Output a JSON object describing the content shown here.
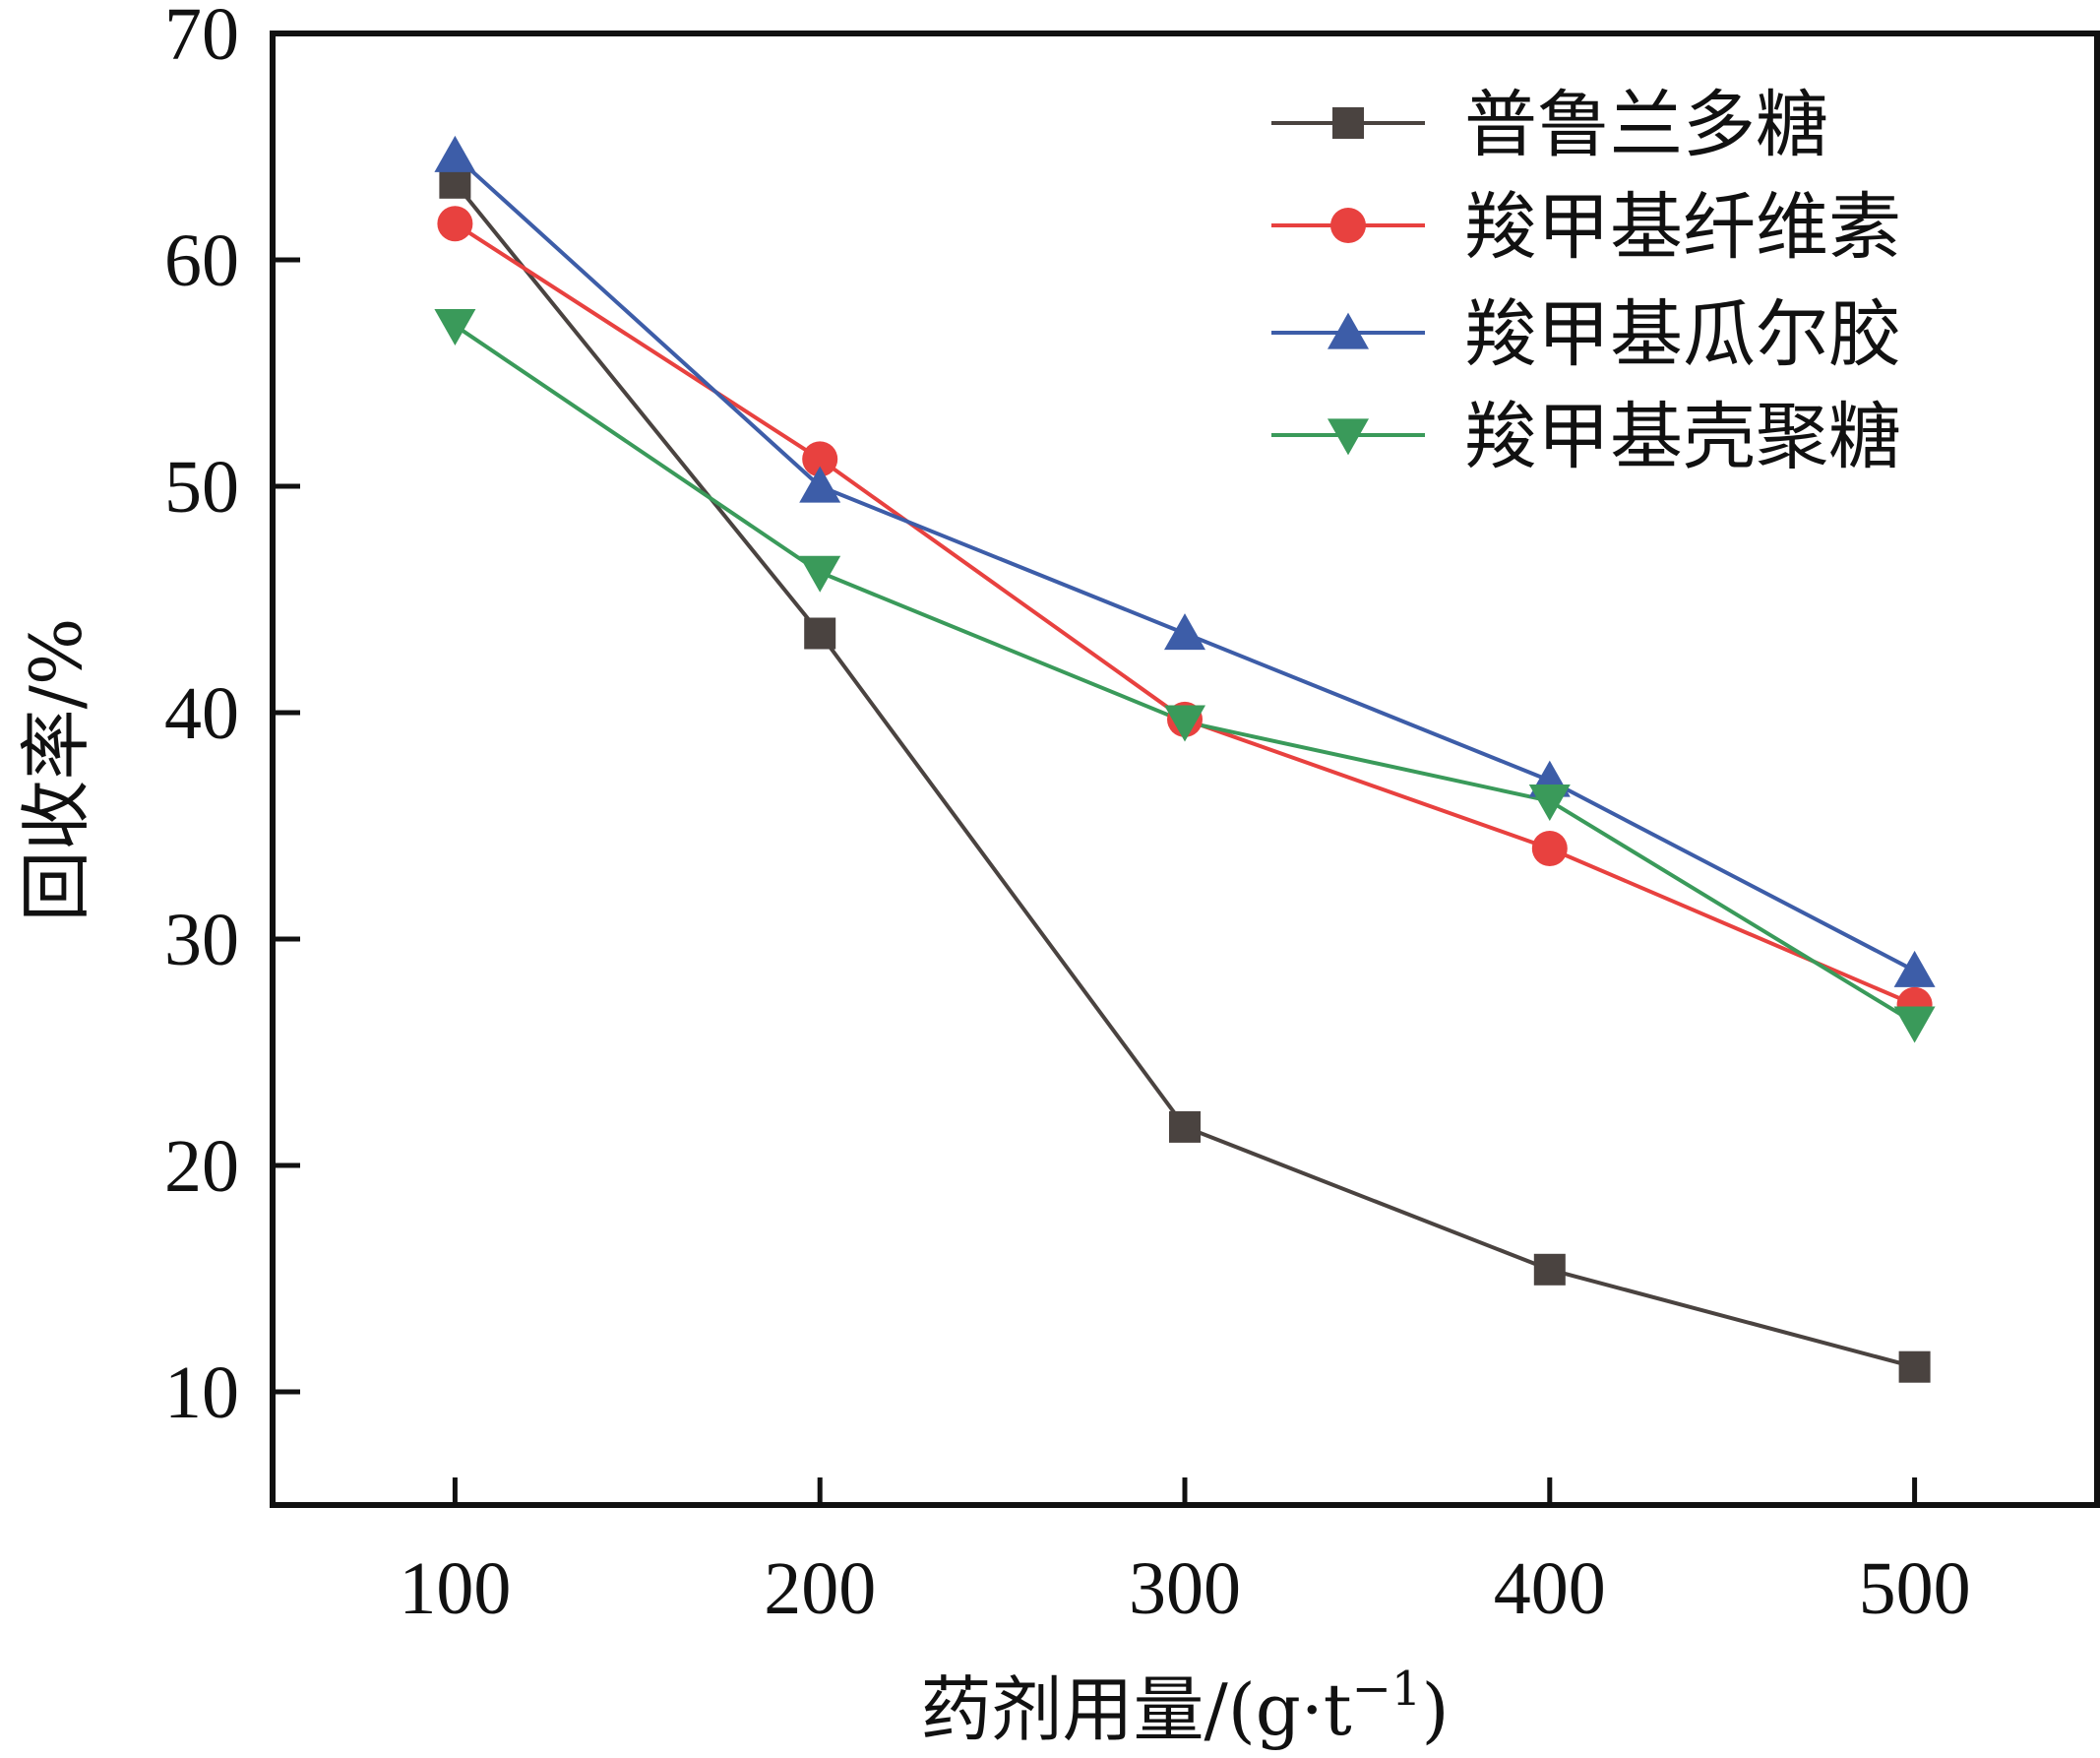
{
  "chart_data": {
    "type": "line",
    "title": "",
    "xlabel": "药剂用量/(g·t⁻¹)",
    "xlabel_parts": {
      "main": "药剂用量/(g·t",
      "sup": "−1",
      "tail": ")"
    },
    "ylabel": "回收率/%",
    "x": [
      100,
      200,
      300,
      400,
      500
    ],
    "xlim": [
      50,
      550
    ],
    "ylim": [
      5,
      70
    ],
    "xticks": [
      100,
      200,
      300,
      400,
      500
    ],
    "yticks": [
      10,
      20,
      30,
      40,
      50,
      60,
      70
    ],
    "grid": false,
    "legend_position": "top-right",
    "series": [
      {
        "name": "普鲁兰多糖",
        "marker": "square",
        "color": "#4a4340",
        "values": [
          63.4,
          43.5,
          21.7,
          15.4,
          11.1
        ]
      },
      {
        "name": "羧甲基纤维素",
        "marker": "circle",
        "color": "#e8413f",
        "values": [
          61.6,
          51.2,
          39.7,
          34.0,
          27.1
        ]
      },
      {
        "name": "羧甲基瓜尔胶",
        "marker": "triangle-up",
        "color": "#3d5da8",
        "values": [
          64.6,
          50.0,
          43.5,
          37.0,
          28.6
        ]
      },
      {
        "name": "羧甲基壳聚糖",
        "marker": "triangle-down",
        "color": "#3a9a5a",
        "values": [
          57.1,
          46.2,
          39.6,
          36.1,
          26.3
        ]
      }
    ]
  }
}
